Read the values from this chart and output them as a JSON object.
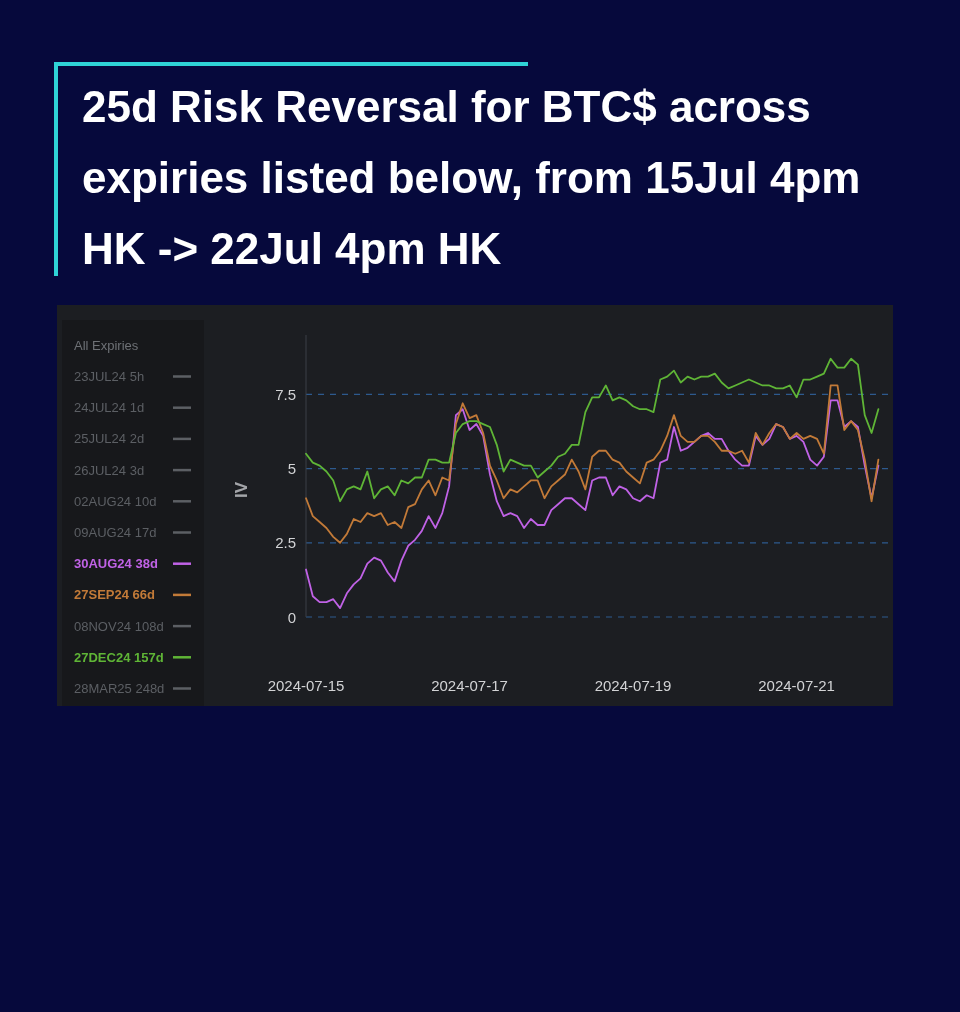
{
  "chart_data": {
    "type": "line",
    "title": "25d Risk Reversal for BTC$ across expiries listed below, from 15Jul 4pm HK -> 22Jul 4pm HK",
    "ylabel": "IV",
    "legend_title": "All Expiries",
    "legend": "left",
    "grid": "y",
    "xlim": [
      "2024-07-15T00:00",
      "2024-07-22T04:00"
    ],
    "xticks": [
      "2024-07-15",
      "2024-07-17",
      "2024-07-19",
      "2024-07-21"
    ],
    "ylim": [
      0,
      9.5
    ],
    "yticks": [
      0,
      2.5,
      5,
      7.5
    ],
    "x": [
      "2024-07-15T00:00",
      "2024-07-15T02:00",
      "2024-07-15T04:00",
      "2024-07-15T06:00",
      "2024-07-15T08:00",
      "2024-07-15T10:00",
      "2024-07-15T12:00",
      "2024-07-15T14:00",
      "2024-07-15T16:00",
      "2024-07-15T18:00",
      "2024-07-15T20:00",
      "2024-07-15T22:00",
      "2024-07-16T00:00",
      "2024-07-16T02:00",
      "2024-07-16T04:00",
      "2024-07-16T06:00",
      "2024-07-16T08:00",
      "2024-07-16T10:00",
      "2024-07-16T12:00",
      "2024-07-16T14:00",
      "2024-07-16T16:00",
      "2024-07-16T18:00",
      "2024-07-16T20:00",
      "2024-07-16T22:00",
      "2024-07-17T00:00",
      "2024-07-17T02:00",
      "2024-07-17T04:00",
      "2024-07-17T06:00",
      "2024-07-17T08:00",
      "2024-07-17T10:00",
      "2024-07-17T12:00",
      "2024-07-17T14:00",
      "2024-07-17T16:00",
      "2024-07-17T18:00",
      "2024-07-17T20:00",
      "2024-07-17T22:00",
      "2024-07-18T00:00",
      "2024-07-18T02:00",
      "2024-07-18T04:00",
      "2024-07-18T06:00",
      "2024-07-18T08:00",
      "2024-07-18T10:00",
      "2024-07-18T12:00",
      "2024-07-18T14:00",
      "2024-07-18T16:00",
      "2024-07-18T18:00",
      "2024-07-18T20:00",
      "2024-07-18T22:00",
      "2024-07-19T00:00",
      "2024-07-19T02:00",
      "2024-07-19T04:00",
      "2024-07-19T06:00",
      "2024-07-19T08:00",
      "2024-07-19T10:00",
      "2024-07-19T12:00",
      "2024-07-19T14:00",
      "2024-07-19T16:00",
      "2024-07-19T18:00",
      "2024-07-19T20:00",
      "2024-07-19T22:00",
      "2024-07-20T00:00",
      "2024-07-20T02:00",
      "2024-07-20T04:00",
      "2024-07-20T06:00",
      "2024-07-20T08:00",
      "2024-07-20T10:00",
      "2024-07-20T12:00",
      "2024-07-20T14:00",
      "2024-07-20T16:00",
      "2024-07-20T18:00",
      "2024-07-20T20:00",
      "2024-07-20T22:00",
      "2024-07-21T00:00",
      "2024-07-21T02:00",
      "2024-07-21T04:00",
      "2024-07-21T06:00",
      "2024-07-21T08:00",
      "2024-07-21T10:00",
      "2024-07-21T12:00",
      "2024-07-21T14:00",
      "2024-07-21T16:00",
      "2024-07-21T18:00",
      "2024-07-21T20:00",
      "2024-07-21T22:00",
      "2024-07-22T00:00"
    ],
    "series": [
      {
        "name": "23JUL24 5h",
        "color": "#5c5f64",
        "values": [
          null,
          null,
          null,
          null,
          null,
          null,
          null,
          null,
          null,
          null,
          null,
          null,
          null,
          null,
          null,
          null,
          null,
          null,
          null,
          null,
          null,
          null,
          null,
          null,
          null,
          null,
          null,
          null,
          null,
          null,
          null,
          null,
          null,
          null,
          null,
          null,
          null,
          null,
          null,
          null,
          null,
          null,
          null,
          null,
          null,
          null,
          null,
          null,
          null,
          null,
          null,
          null,
          null,
          null,
          null,
          null,
          null,
          null,
          null,
          null,
          null,
          null,
          null,
          null,
          null,
          null,
          null,
          null,
          null,
          null,
          null,
          null,
          null,
          null,
          null,
          null,
          null,
          null,
          null,
          null,
          null,
          null,
          null,
          null,
          null
        ]
      },
      {
        "name": "24JUL24 1d",
        "color": "#5c5f64",
        "values": [
          null,
          null,
          null,
          null,
          null,
          null,
          null,
          null,
          null,
          null,
          null,
          null,
          null,
          null,
          null,
          null,
          null,
          null,
          null,
          null,
          null,
          null,
          null,
          null,
          null,
          null,
          null,
          null,
          null,
          null,
          null,
          null,
          null,
          null,
          null,
          null,
          null,
          null,
          null,
          null,
          null,
          null,
          null,
          null,
          null,
          null,
          null,
          null,
          null,
          null,
          null,
          null,
          null,
          null,
          null,
          null,
          null,
          null,
          null,
          null,
          null,
          null,
          null,
          null,
          null,
          null,
          null,
          null,
          null,
          null,
          null,
          null,
          null,
          null,
          null,
          null,
          null,
          null,
          null,
          null,
          null,
          null,
          null,
          null,
          null
        ]
      },
      {
        "name": "25JUL24 2d",
        "color": "#5c5f64",
        "values": [
          null,
          null,
          null,
          null,
          null,
          null,
          null,
          null,
          null,
          null,
          null,
          null,
          null,
          null,
          null,
          null,
          null,
          null,
          null,
          null,
          null,
          null,
          null,
          null,
          null,
          null,
          null,
          null,
          null,
          null,
          null,
          null,
          null,
          null,
          null,
          null,
          null,
          null,
          null,
          null,
          null,
          null,
          null,
          null,
          null,
          null,
          null,
          null,
          null,
          null,
          null,
          null,
          null,
          null,
          null,
          null,
          null,
          null,
          null,
          null,
          null,
          null,
          null,
          null,
          null,
          null,
          null,
          null,
          null,
          null,
          null,
          null,
          null,
          null,
          null,
          null,
          null,
          null,
          null,
          null,
          null,
          null,
          null,
          null,
          null
        ]
      },
      {
        "name": "26JUL24 3d",
        "color": "#5c5f64",
        "values": [
          null,
          null,
          null,
          null,
          null,
          null,
          null,
          null,
          null,
          null,
          null,
          null,
          null,
          null,
          null,
          null,
          null,
          null,
          null,
          null,
          null,
          null,
          null,
          null,
          null,
          null,
          null,
          null,
          null,
          null,
          null,
          null,
          null,
          null,
          null,
          null,
          null,
          null,
          null,
          null,
          null,
          null,
          null,
          null,
          null,
          null,
          null,
          null,
          null,
          null,
          null,
          null,
          null,
          null,
          null,
          null,
          null,
          null,
          null,
          null,
          null,
          null,
          null,
          null,
          null,
          null,
          null,
          null,
          null,
          null,
          null,
          null,
          null,
          null,
          null,
          null,
          null,
          null,
          null,
          null,
          null,
          null,
          null,
          null,
          null
        ]
      },
      {
        "name": "02AUG24 10d",
        "color": "#5c5f64",
        "values": [
          null,
          null,
          null,
          null,
          null,
          null,
          null,
          null,
          null,
          null,
          null,
          null,
          null,
          null,
          null,
          null,
          null,
          null,
          null,
          null,
          null,
          null,
          null,
          null,
          null,
          null,
          null,
          null,
          null,
          null,
          null,
          null,
          null,
          null,
          null,
          null,
          null,
          null,
          null,
          null,
          null,
          null,
          null,
          null,
          null,
          null,
          null,
          null,
          null,
          null,
          null,
          null,
          null,
          null,
          null,
          null,
          null,
          null,
          null,
          null,
          null,
          null,
          null,
          null,
          null,
          null,
          null,
          null,
          null,
          null,
          null,
          null,
          null,
          null,
          null,
          null,
          null,
          null,
          null,
          null,
          null,
          null,
          null,
          null,
          null
        ]
      },
      {
        "name": "09AUG24 17d",
        "color": "#5c5f64",
        "values": [
          null,
          null,
          null,
          null,
          null,
          null,
          null,
          null,
          null,
          null,
          null,
          null,
          null,
          null,
          null,
          null,
          null,
          null,
          null,
          null,
          null,
          null,
          null,
          null,
          null,
          null,
          null,
          null,
          null,
          null,
          null,
          null,
          null,
          null,
          null,
          null,
          null,
          null,
          null,
          null,
          null,
          null,
          null,
          null,
          null,
          null,
          null,
          null,
          null,
          null,
          null,
          null,
          null,
          null,
          null,
          null,
          null,
          null,
          null,
          null,
          null,
          null,
          null,
          null,
          null,
          null,
          null,
          null,
          null,
          null,
          null,
          null,
          null,
          null,
          null,
          null,
          null,
          null,
          null,
          null,
          null,
          null,
          null,
          null,
          null
        ]
      },
      {
        "name": "30AUG24 38d",
        "color": "#c062e6",
        "values": [
          1.6,
          0.7,
          0.5,
          0.5,
          0.6,
          0.3,
          0.8,
          1.1,
          1.3,
          1.8,
          2.0,
          1.9,
          1.5,
          1.2,
          1.9,
          2.4,
          2.6,
          2.9,
          3.4,
          3.0,
          3.5,
          4.4,
          6.8,
          7.0,
          6.3,
          6.5,
          6.1,
          4.8,
          3.9,
          3.4,
          3.5,
          3.4,
          3.0,
          3.3,
          3.1,
          3.1,
          3.6,
          3.8,
          4.0,
          4.0,
          3.8,
          3.6,
          4.6,
          4.7,
          4.7,
          4.1,
          4.4,
          4.3,
          4.0,
          3.9,
          4.1,
          4.0,
          5.2,
          5.3,
          6.4,
          5.6,
          5.7,
          5.9,
          6.1,
          6.2,
          6.0,
          6.0,
          5.6,
          5.3,
          5.1,
          5.1,
          6.1,
          5.8,
          6.0,
          6.5,
          6.4,
          6.0,
          6.1,
          5.9,
          5.3,
          5.1,
          5.4,
          7.3,
          7.3,
          6.4,
          6.6,
          6.4,
          5.1,
          4.0,
          5.1
        ]
      },
      {
        "name": "27SEP24 66d",
        "color": "#c27a38",
        "values": [
          4.0,
          3.4,
          3.2,
          3.0,
          2.7,
          2.5,
          2.8,
          3.3,
          3.2,
          3.5,
          3.4,
          3.5,
          3.1,
          3.2,
          3.0,
          3.7,
          3.8,
          4.3,
          4.6,
          4.1,
          4.7,
          4.6,
          6.5,
          7.2,
          6.7,
          6.8,
          6.2,
          5.1,
          4.6,
          4.0,
          4.3,
          4.2,
          4.4,
          4.6,
          4.6,
          4.0,
          4.4,
          4.6,
          4.8,
          5.3,
          4.9,
          4.3,
          5.4,
          5.6,
          5.6,
          5.3,
          5.2,
          4.9,
          4.7,
          4.5,
          5.2,
          5.3,
          5.6,
          6.1,
          6.8,
          6.1,
          5.9,
          5.9,
          6.1,
          6.1,
          5.9,
          5.6,
          5.6,
          5.5,
          5.6,
          5.2,
          6.2,
          5.8,
          6.2,
          6.5,
          6.4,
          6.0,
          6.2,
          6.0,
          6.1,
          6.0,
          5.5,
          7.8,
          7.8,
          6.3,
          6.6,
          6.3,
          5.3,
          3.9,
          5.3
        ]
      },
      {
        "name": "08NOV24 108d",
        "color": "#5c5f64",
        "values": [
          null,
          null,
          null,
          null,
          null,
          null,
          null,
          null,
          null,
          null,
          null,
          null,
          null,
          null,
          null,
          null,
          null,
          null,
          null,
          null,
          null,
          null,
          null,
          null,
          null,
          null,
          null,
          null,
          null,
          null,
          null,
          null,
          null,
          null,
          null,
          null,
          null,
          null,
          null,
          null,
          null,
          null,
          null,
          null,
          null,
          null,
          null,
          null,
          null,
          null,
          null,
          null,
          null,
          null,
          null,
          null,
          null,
          null,
          null,
          null,
          null,
          null,
          null,
          null,
          null,
          null,
          null,
          null,
          null,
          null,
          null,
          null,
          null,
          null,
          null,
          null,
          null,
          null,
          null,
          null,
          null,
          null,
          null,
          null,
          null
        ]
      },
      {
        "name": "27DEC24 157d",
        "color": "#5fb536",
        "values": [
          5.5,
          5.2,
          5.1,
          4.9,
          4.6,
          3.9,
          4.3,
          4.4,
          4.3,
          4.9,
          4.0,
          4.3,
          4.4,
          4.1,
          4.6,
          4.5,
          4.7,
          4.7,
          5.3,
          5.3,
          5.2,
          5.2,
          6.2,
          6.5,
          6.6,
          6.6,
          6.5,
          6.4,
          5.8,
          4.9,
          5.3,
          5.2,
          5.1,
          5.1,
          4.7,
          4.9,
          5.1,
          5.4,
          5.5,
          5.8,
          5.8,
          6.9,
          7.4,
          7.4,
          7.8,
          7.3,
          7.4,
          7.3,
          7.1,
          7.0,
          7.0,
          6.9,
          8.0,
          8.1,
          8.3,
          7.9,
          8.1,
          8.0,
          8.1,
          8.1,
          8.2,
          7.9,
          7.7,
          7.8,
          7.9,
          8.0,
          7.9,
          7.8,
          7.8,
          7.7,
          7.7,
          7.8,
          7.4,
          8.0,
          8.0,
          8.1,
          8.2,
          8.7,
          8.4,
          8.4,
          8.7,
          8.5,
          6.8,
          6.2,
          7.0
        ]
      },
      {
        "name": "28MAR25 248d",
        "color": "#5c5f64",
        "values": [
          null,
          null,
          null,
          null,
          null,
          null,
          null,
          null,
          null,
          null,
          null,
          null,
          null,
          null,
          null,
          null,
          null,
          null,
          null,
          null,
          null,
          null,
          null,
          null,
          null,
          null,
          null,
          null,
          null,
          null,
          null,
          null,
          null,
          null,
          null,
          null,
          null,
          null,
          null,
          null,
          null,
          null,
          null,
          null,
          null,
          null,
          null,
          null,
          null,
          null,
          null,
          null,
          null,
          null,
          null,
          null,
          null,
          null,
          null,
          null,
          null,
          null,
          null,
          null,
          null,
          null,
          null,
          null,
          null,
          null,
          null,
          null,
          null,
          null,
          null,
          null,
          null,
          null,
          null,
          null,
          null,
          null,
          null,
          null,
          null
        ]
      }
    ]
  }
}
